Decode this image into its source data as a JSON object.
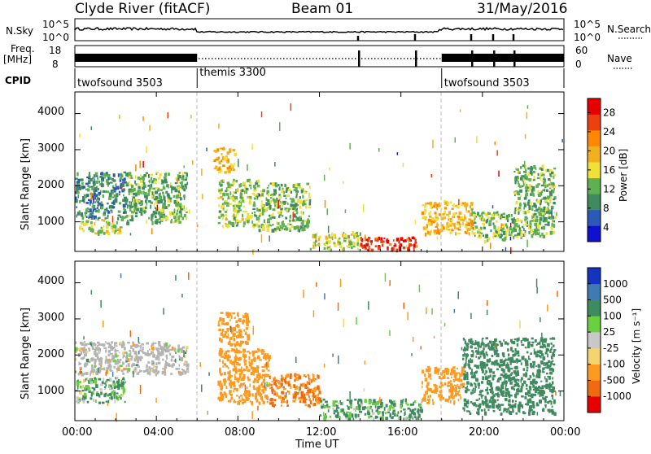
{
  "header": {
    "station": "Clyde River (fitACF)",
    "beam": "Beam 01",
    "date": "31/May/2016"
  },
  "summary": {
    "nsky_label": "N.Sky",
    "nsky_ticks": [
      "10^5",
      "10^0"
    ],
    "nsearch_label": "N.Search",
    "freq_label": "Freq.",
    "freq_unit": "[MHz]",
    "freq_ticks": [
      "18",
      "8"
    ],
    "nave_label": "Nave",
    "nave_ticks": [
      "60",
      "0"
    ],
    "cpid_label": "CPID",
    "cpid_segments": [
      {
        "name": "twofsound 3503",
        "start_hour": 0,
        "end_hour": 6
      },
      {
        "name": "themis 3300",
        "start_hour": 6,
        "end_hour": 18
      },
      {
        "name": "twofsound 3503",
        "start_hour": 18,
        "end_hour": 24
      }
    ]
  },
  "axes": {
    "ylabel": "Slant Range [km]",
    "xlabel": "Time UT",
    "y_ticks": [
      "1000",
      "2000",
      "3000",
      "4000"
    ],
    "x_ticks": [
      "00:00",
      "04:00",
      "08:00",
      "12:00",
      "16:00",
      "20:00",
      "00:00"
    ]
  },
  "colors": {
    "power": [
      "#1010d0",
      "#2c58b8",
      "#3f8a5e",
      "#5fb050",
      "#f0e038",
      "#f0b020",
      "#ff8800",
      "#ee3f10",
      "#e80000"
    ],
    "velocity": [
      "#e80000",
      "#f06a10",
      "#ff9a20",
      "#f3d470",
      "#c8c8c8",
      "#6ad040",
      "#3f8a5e",
      "#3f7ab0",
      "#1434c0"
    ],
    "ground_scatter": "#b4b4b4"
  },
  "power_colorbar": {
    "title": "Power [dB]",
    "ticks": [
      "4",
      "8",
      "12",
      "16",
      "20",
      "24",
      "28"
    ]
  },
  "velocity_colorbar": {
    "title": "Velocity [m s⁻¹]",
    "ticks": [
      "-1000",
      "-500",
      "-100",
      "-25",
      "25",
      "100",
      "500",
      "1000"
    ]
  },
  "chart_data": [
    {
      "type": "heatmap",
      "title": "Power",
      "xlabel": "Time UT",
      "ylabel": "Slant Range [km]",
      "x_range_hours": [
        0,
        24
      ],
      "ylim": [
        180,
        4600
      ],
      "colorbar_label": "Power [dB]",
      "colorbar_range": [
        0,
        30
      ],
      "approximate_regions": [
        {
          "t": [
            0,
            2.5
          ],
          "r": [
            1100,
            2400
          ],
          "value_db": 8
        },
        {
          "t": [
            0.2,
            2.2
          ],
          "r": [
            700,
            1100
          ],
          "value_db": 14
        },
        {
          "t": [
            2.5,
            5.5
          ],
          "r": [
            1000,
            2400
          ],
          "value_db": 11
        },
        {
          "t": [
            6.8,
            7.8
          ],
          "r": [
            2400,
            3100
          ],
          "value_db": 18
        },
        {
          "t": [
            7,
            9
          ],
          "r": [
            900,
            2200
          ],
          "value_db": 13
        },
        {
          "t": [
            9,
            11.5
          ],
          "r": [
            800,
            2100
          ],
          "value_db": 12
        },
        {
          "t": [
            11.5,
            14
          ],
          "r": [
            250,
            750
          ],
          "value_db": 14
        },
        {
          "t": [
            14,
            16.8
          ],
          "r": [
            250,
            600
          ],
          "value_db": 27
        },
        {
          "t": [
            17,
            19.5
          ],
          "r": [
            700,
            1600
          ],
          "value_db": 18
        },
        {
          "t": [
            19.5,
            21.5
          ],
          "r": [
            500,
            1300
          ],
          "value_db": 12
        },
        {
          "t": [
            21.5,
            23.5
          ],
          "r": [
            600,
            2600
          ],
          "value_db": 11
        }
      ]
    },
    {
      "type": "heatmap",
      "title": "Velocity",
      "xlabel": "Time UT",
      "ylabel": "Slant Range [km]",
      "x_range_hours": [
        0,
        24
      ],
      "ylim": [
        180,
        4600
      ],
      "colorbar_label": "Velocity [m s⁻¹]",
      "colorbar_range": [
        -1000,
        1000
      ],
      "approximate_regions": [
        {
          "t": [
            0,
            5.5
          ],
          "r": [
            1500,
            2400
          ],
          "value_ms": 0,
          "ground_scatter": true
        },
        {
          "t": [
            0,
            2.5
          ],
          "r": [
            700,
            1400
          ],
          "value_ms": 100
        },
        {
          "t": [
            7,
            8.5
          ],
          "r": [
            2300,
            3200
          ],
          "value_ms": -300
        },
        {
          "t": [
            7,
            9.5
          ],
          "r": [
            700,
            2200
          ],
          "value_ms": -350
        },
        {
          "t": [
            9.5,
            12
          ],
          "r": [
            600,
            1500
          ],
          "value_ms": -500
        },
        {
          "t": [
            12,
            17
          ],
          "r": [
            250,
            800
          ],
          "value_ms": 150
        },
        {
          "t": [
            17,
            19
          ],
          "r": [
            700,
            1700
          ],
          "value_ms": -300
        },
        {
          "t": [
            19,
            23.5
          ],
          "r": [
            400,
            2500
          ],
          "value_ms": 250
        }
      ]
    }
  ]
}
